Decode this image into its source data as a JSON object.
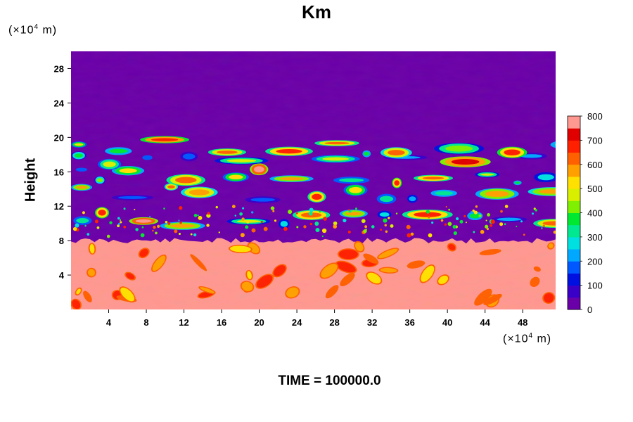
{
  "chart_data": {
    "type": "heatmap",
    "title": "Km",
    "ylabel": "Height",
    "x_unit": [
      "(×10",
      "4",
      " m)"
    ],
    "y_unit": [
      "(×10",
      "4",
      " m)"
    ],
    "footer": "TIME = 100000.0",
    "xlim": [
      0,
      51.5
    ],
    "ylim": [
      0,
      30
    ],
    "x_ticks": [
      4,
      8,
      12,
      16,
      20,
      24,
      28,
      32,
      36,
      40,
      44,
      48
    ],
    "y_ticks": [
      4,
      8,
      12,
      16,
      20,
      24,
      28
    ],
    "colorbar": {
      "min": 0,
      "max": 800,
      "ticks": [
        0,
        100,
        200,
        300,
        400,
        500,
        600,
        700,
        800
      ],
      "colors": [
        "#6a00a8",
        "#3b00c8",
        "#0010e0",
        "#0058ff",
        "#00a8ff",
        "#00e0e0",
        "#00e890",
        "#00e830",
        "#7ff000",
        "#d8f000",
        "#ffe000",
        "#ffa000",
        "#ff6000",
        "#ff2000",
        "#e00000",
        "#ff9890"
      ]
    },
    "field_description_values": {
      "background_above": 0,
      "lower_layer_value": 800,
      "lower_layer_top": 8.0,
      "active_bands_center_heights": [
        10.5,
        13.5,
        15.5,
        17.5,
        19
      ]
    }
  }
}
